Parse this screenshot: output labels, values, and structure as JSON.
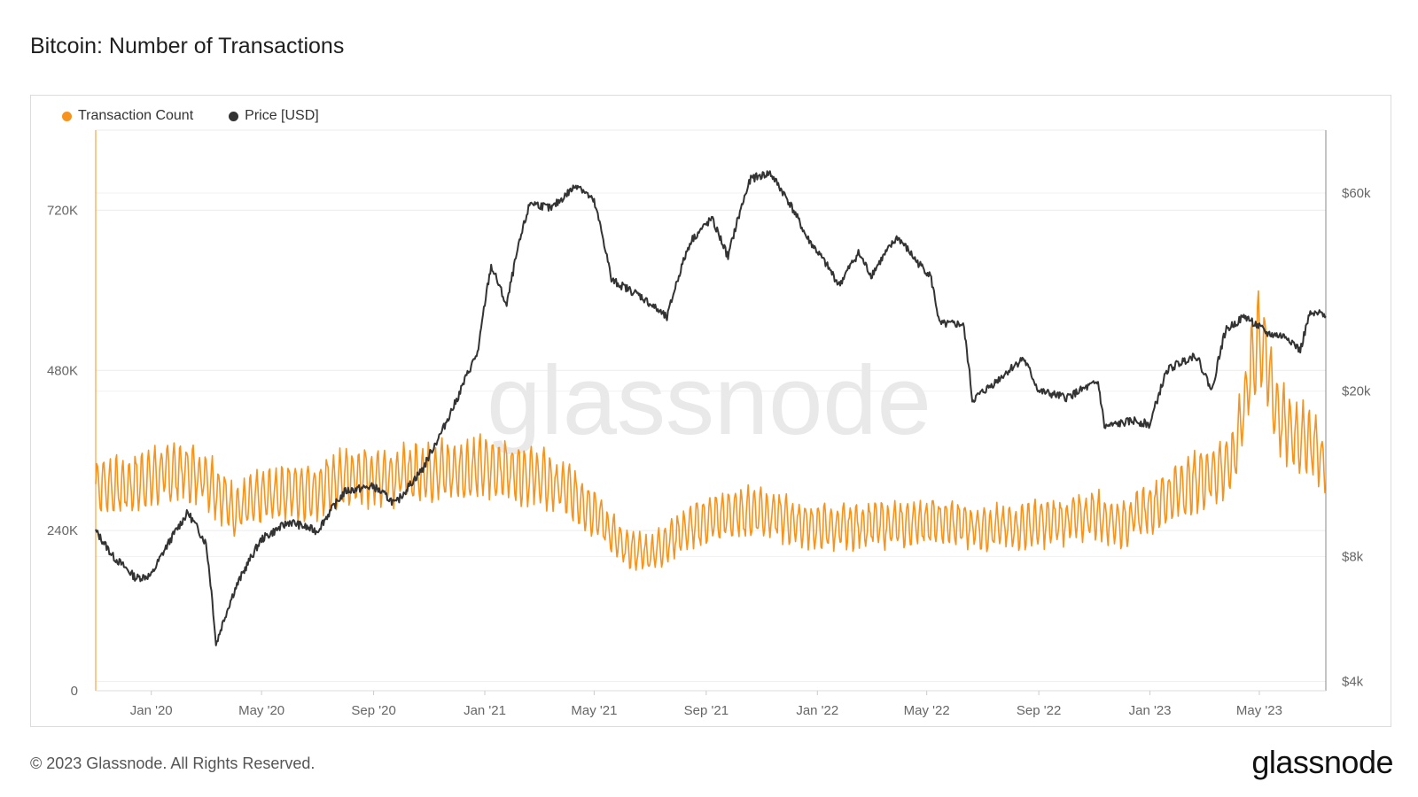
{
  "header": {
    "title": "Bitcoin: Number of Transactions"
  },
  "legend": {
    "items": [
      {
        "label": "Transaction Count",
        "color": "#f7931a"
      },
      {
        "label": "Price [USD]",
        "color": "#333333"
      }
    ]
  },
  "watermark": "glassnode",
  "footer": {
    "copyright": "© 2023 Glassnode. All Rights Reserved.",
    "brand": "glassnode"
  },
  "chart_data": {
    "type": "line",
    "title": "Bitcoin: Number of Transactions",
    "x_range": [
      "2019-11-01",
      "2023-07-13"
    ],
    "x_ticks": [
      {
        "date": "2020-01-01",
        "label": "Jan '20"
      },
      {
        "date": "2020-05-01",
        "label": "May '20"
      },
      {
        "date": "2020-09-01",
        "label": "Sep '20"
      },
      {
        "date": "2021-01-01",
        "label": "Jan '21"
      },
      {
        "date": "2021-05-01",
        "label": "May '21"
      },
      {
        "date": "2021-09-01",
        "label": "Sep '21"
      },
      {
        "date": "2022-01-01",
        "label": "Jan '22"
      },
      {
        "date": "2022-05-01",
        "label": "May '22"
      },
      {
        "date": "2022-09-01",
        "label": "Sep '22"
      },
      {
        "date": "2023-01-01",
        "label": "Jan '23"
      },
      {
        "date": "2023-05-01",
        "label": "May '23"
      }
    ],
    "y_left": {
      "scale": "linear",
      "range": [
        0,
        840000
      ],
      "ticks": [
        {
          "value": 0,
          "label": "0"
        },
        {
          "value": 240000,
          "label": "240K"
        },
        {
          "value": 480000,
          "label": "480K"
        },
        {
          "value": 720000,
          "label": "720K"
        }
      ]
    },
    "y_right": {
      "scale": "log",
      "range": [
        3800,
        85000
      ],
      "ticks": [
        {
          "value": 4000,
          "label": "$4k"
        },
        {
          "value": 8000,
          "label": "$8k"
        },
        {
          "value": 20000,
          "label": "$20k"
        },
        {
          "value": 60000,
          "label": "$60k"
        }
      ]
    },
    "grid": true,
    "legend_position": "top-left",
    "series": [
      {
        "name": "Transaction Count",
        "axis": "left",
        "color": "#f7931a",
        "points": [
          [
            "2019-11-01",
            310000
          ],
          [
            "2019-12-01",
            305000
          ],
          [
            "2020-01-01",
            320000
          ],
          [
            "2020-02-01",
            330000
          ],
          [
            "2020-03-01",
            320000
          ],
          [
            "2020-04-01",
            270000
          ],
          [
            "2020-05-01",
            290000
          ],
          [
            "2020-06-01",
            300000
          ],
          [
            "2020-07-01",
            300000
          ],
          [
            "2020-08-01",
            320000
          ],
          [
            "2020-09-01",
            320000
          ],
          [
            "2020-10-01",
            325000
          ],
          [
            "2020-11-01",
            330000
          ],
          [
            "2020-12-01",
            330000
          ],
          [
            "2021-01-01",
            335000
          ],
          [
            "2021-02-01",
            330000
          ],
          [
            "2021-03-01",
            320000
          ],
          [
            "2021-04-01",
            300000
          ],
          [
            "2021-05-01",
            270000
          ],
          [
            "2021-06-01",
            215000
          ],
          [
            "2021-07-01",
            205000
          ],
          [
            "2021-08-01",
            235000
          ],
          [
            "2021-09-01",
            255000
          ],
          [
            "2021-10-01",
            265000
          ],
          [
            "2021-11-01",
            270000
          ],
          [
            "2021-12-01",
            255000
          ],
          [
            "2022-01-01",
            245000
          ],
          [
            "2022-02-01",
            245000
          ],
          [
            "2022-03-01",
            250000
          ],
          [
            "2022-04-01",
            248000
          ],
          [
            "2022-05-01",
            255000
          ],
          [
            "2022-06-01",
            250000
          ],
          [
            "2022-07-01",
            245000
          ],
          [
            "2022-08-01",
            245000
          ],
          [
            "2022-09-01",
            250000
          ],
          [
            "2022-10-01",
            255000
          ],
          [
            "2022-11-01",
            265000
          ],
          [
            "2022-12-01",
            250000
          ],
          [
            "2023-01-01",
            275000
          ],
          [
            "2023-02-01",
            300000
          ],
          [
            "2023-03-01",
            320000
          ],
          [
            "2023-04-01",
            340000
          ],
          [
            "2023-05-01",
            540000
          ],
          [
            "2023-05-20",
            420000
          ],
          [
            "2023-06-01",
            390000
          ],
          [
            "2023-07-01",
            370000
          ],
          [
            "2023-07-13",
            330000
          ]
        ]
      },
      {
        "name": "Price [USD]",
        "axis": "right",
        "color": "#333333",
        "points": [
          [
            "2019-11-01",
            9200
          ],
          [
            "2019-11-20",
            8000
          ],
          [
            "2019-12-15",
            7100
          ],
          [
            "2020-01-01",
            7200
          ],
          [
            "2020-02-10",
            10200
          ],
          [
            "2020-03-01",
            8600
          ],
          [
            "2020-03-12",
            4900
          ],
          [
            "2020-04-01",
            6600
          ],
          [
            "2020-05-01",
            8800
          ],
          [
            "2020-06-01",
            9700
          ],
          [
            "2020-07-01",
            9200
          ],
          [
            "2020-08-01",
            11500
          ],
          [
            "2020-09-01",
            11800
          ],
          [
            "2020-09-25",
            10700
          ],
          [
            "2020-10-25",
            13000
          ],
          [
            "2020-11-15",
            16000
          ],
          [
            "2020-12-01",
            19000
          ],
          [
            "2020-12-25",
            25000
          ],
          [
            "2021-01-08",
            40000
          ],
          [
            "2021-01-25",
            32000
          ],
          [
            "2021-02-20",
            57000
          ],
          [
            "2021-03-15",
            55000
          ],
          [
            "2021-04-13",
            63000
          ],
          [
            "2021-05-01",
            57000
          ],
          [
            "2021-05-20",
            37000
          ],
          [
            "2021-06-20",
            34000
          ],
          [
            "2021-07-20",
            30000
          ],
          [
            "2021-08-15",
            46000
          ],
          [
            "2021-09-07",
            52000
          ],
          [
            "2021-09-25",
            42000
          ],
          [
            "2021-10-20",
            65000
          ],
          [
            "2021-11-10",
            67000
          ],
          [
            "2021-12-01",
            57000
          ],
          [
            "2021-12-20",
            47000
          ],
          [
            "2022-01-25",
            36000
          ],
          [
            "2022-02-15",
            43000
          ],
          [
            "2022-03-01",
            38000
          ],
          [
            "2022-03-30",
            47000
          ],
          [
            "2022-04-20",
            41000
          ],
          [
            "2022-05-05",
            38000
          ],
          [
            "2022-05-15",
            29000
          ],
          [
            "2022-06-10",
            29000
          ],
          [
            "2022-06-20",
            19000
          ],
          [
            "2022-07-15",
            21000
          ],
          [
            "2022-08-15",
            24000
          ],
          [
            "2022-09-01",
            20000
          ],
          [
            "2022-10-01",
            19300
          ],
          [
            "2022-11-05",
            21000
          ],
          [
            "2022-11-12",
            16400
          ],
          [
            "2022-12-15",
            17000
          ],
          [
            "2023-01-01",
            16600
          ],
          [
            "2023-01-20",
            22500
          ],
          [
            "2023-02-20",
            24500
          ],
          [
            "2023-03-10",
            20000
          ],
          [
            "2023-03-25",
            28000
          ],
          [
            "2023-04-15",
            30300
          ],
          [
            "2023-05-10",
            27500
          ],
          [
            "2023-06-01",
            27000
          ],
          [
            "2023-06-15",
            25000
          ],
          [
            "2023-06-25",
            30500
          ],
          [
            "2023-07-13",
            30800
          ]
        ]
      }
    ]
  }
}
